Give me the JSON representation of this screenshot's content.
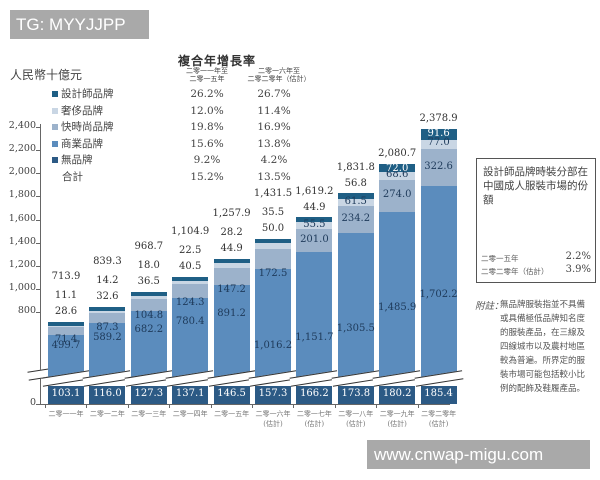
{
  "watermarks": {
    "top": "TG: MYYJJPP",
    "bottom": "www.cnwap-migu.com"
  },
  "unit_label": "人民幣十億元",
  "cagr_table": {
    "title": "複合年增長率",
    "col1_header": [
      "二零一一年至",
      "二零一五年"
    ],
    "col2_header": [
      "二零一六年至",
      "二零二零年（估計）"
    ],
    "rows": [
      {
        "label": "設計師品牌",
        "color": "#1f5f85",
        "col1": "26.2%",
        "col2": "26.7%"
      },
      {
        "label": "奢侈品牌",
        "color": "#c9d6e4",
        "col1": "12.0%",
        "col2": "11.4%"
      },
      {
        "label": "快時尚品牌",
        "color": "#9cb2cb",
        "col1": "19.8%",
        "col2": "16.9%"
      },
      {
        "label": "商業品牌",
        "color": "#5b8cbd",
        "col1": "15.6%",
        "col2": "13.8%"
      },
      {
        "label": "無品牌",
        "color": "#2c5a85",
        "col1": "9.2%",
        "col2": "4.2%"
      },
      {
        "label": "合計",
        "color": "",
        "col1": "15.2%",
        "col2": "13.5%"
      }
    ]
  },
  "chart_data": {
    "type": "bar",
    "stacked": true,
    "title": "複合年增長率",
    "ylabel": "人民幣十億元",
    "ylim": [
      0,
      2400
    ],
    "yticks": [
      "0",
      "800",
      "1,000",
      "1,200",
      "1,400",
      "1,600",
      "1,800",
      "2,000",
      "2,200",
      "2,400"
    ],
    "axis_break": true,
    "categories": [
      "二零一一年",
      "二零一二年",
      "二零一三年",
      "二零一四年",
      "二零一五年",
      "二零一六年（估計）",
      "二零一七年（估計）",
      "二零一八年（估計）",
      "二零一九年（估計）",
      "二零二零年（估計）"
    ],
    "series": [
      {
        "name": "無品牌",
        "color": "#2c5a85",
        "values": [
          103.1,
          116.0,
          127.3,
          137.1,
          146.5,
          157.3,
          166.2,
          173.8,
          180.2,
          185.4
        ]
      },
      {
        "name": "商業品牌",
        "color": "#5b8cbd",
        "values": [
          499.7,
          589.2,
          682.2,
          780.4,
          891.2,
          1016.2,
          1151.7,
          1305.5,
          1485.9,
          1702.2
        ]
      },
      {
        "name": "快時尚品牌",
        "color": "#9cb2cb",
        "values": [
          71.4,
          87.3,
          104.8,
          124.3,
          147.2,
          172.5,
          201.0,
          234.2,
          274.0,
          322.6
        ]
      },
      {
        "name": "奢侈品牌",
        "color": "#c9d6e4",
        "values": [
          28.6,
          32.6,
          36.5,
          40.5,
          44.9,
          50.0,
          55.5,
          61.5,
          68.6,
          77.0
        ]
      },
      {
        "name": "設計師品牌",
        "color": "#1f5f85",
        "values": [
          11.1,
          14.2,
          18.0,
          22.5,
          28.2,
          35.5,
          44.9,
          56.8,
          72.0,
          91.6
        ]
      }
    ],
    "totals": [
      713.9,
      839.3,
      968.7,
      1104.9,
      1257.9,
      1431.5,
      1619.2,
      1831.8,
      2080.7,
      2378.9
    ],
    "labels": {
      "nobrand": [
        "103.1",
        "116.0",
        "127.3",
        "137.1",
        "146.5",
        "157.3",
        "166.2",
        "173.8",
        "180.2",
        "185.4"
      ],
      "commercial": [
        "499.7",
        "589.2",
        "682.2",
        "780.4",
        "891.2",
        "1,016.2",
        "1,151.7",
        "1,305.5",
        "1,485.9",
        "1,702.2"
      ],
      "fast": [
        "71.4",
        "87.3",
        "104.8",
        "124.3",
        "147.2",
        "172.5",
        "201.0",
        "234.2",
        "274.0",
        "322.6"
      ],
      "luxury": [
        "28.6",
        "32.6",
        "36.5",
        "40.5",
        "44.9",
        "50.0",
        "55.5",
        "61.5",
        "68.6",
        "77.0"
      ],
      "designer": [
        "11.1",
        "14.2",
        "18.0",
        "22.5",
        "28.2",
        "35.5",
        "44.9",
        "56.8",
        "72.0",
        "91.6"
      ],
      "total": [
        "713.9",
        "839.3",
        "968.7",
        "1,104.9",
        "1,257.9",
        "1,431.5",
        "1,619.2",
        "1,831.8",
        "2,080.7",
        "2,378.9"
      ]
    },
    "xlabels": [
      [
        "二零一一年",
        ""
      ],
      [
        "二零一二年",
        ""
      ],
      [
        "二零一三年",
        ""
      ],
      [
        "二零一四年",
        ""
      ],
      [
        "二零一五年",
        ""
      ],
      [
        "二零一六年",
        "(估計)"
      ],
      [
        "二零一七年",
        "(估計)"
      ],
      [
        "二零一八年",
        "(估計)"
      ],
      [
        "二零一九年",
        "(估計)"
      ],
      [
        "二零二零年",
        "(估計)"
      ]
    ]
  },
  "share_box": {
    "title": "設計師品牌時裝分部在中國成人服裝市場的份額",
    "rows": [
      {
        "label": "二零一五年",
        "value": "2.2%"
      },
      {
        "label": "二零二零年（估計）",
        "value": "3.9%"
      }
    ]
  },
  "note": {
    "label": "附註：",
    "text": "無品牌服裝指並不具備或具備極低品牌知名度的服裝產品，在三線及四線城市以及農村地區較為普遍。所界定的服裝市場可能包括較小比例的配飾及鞋履產品。"
  }
}
